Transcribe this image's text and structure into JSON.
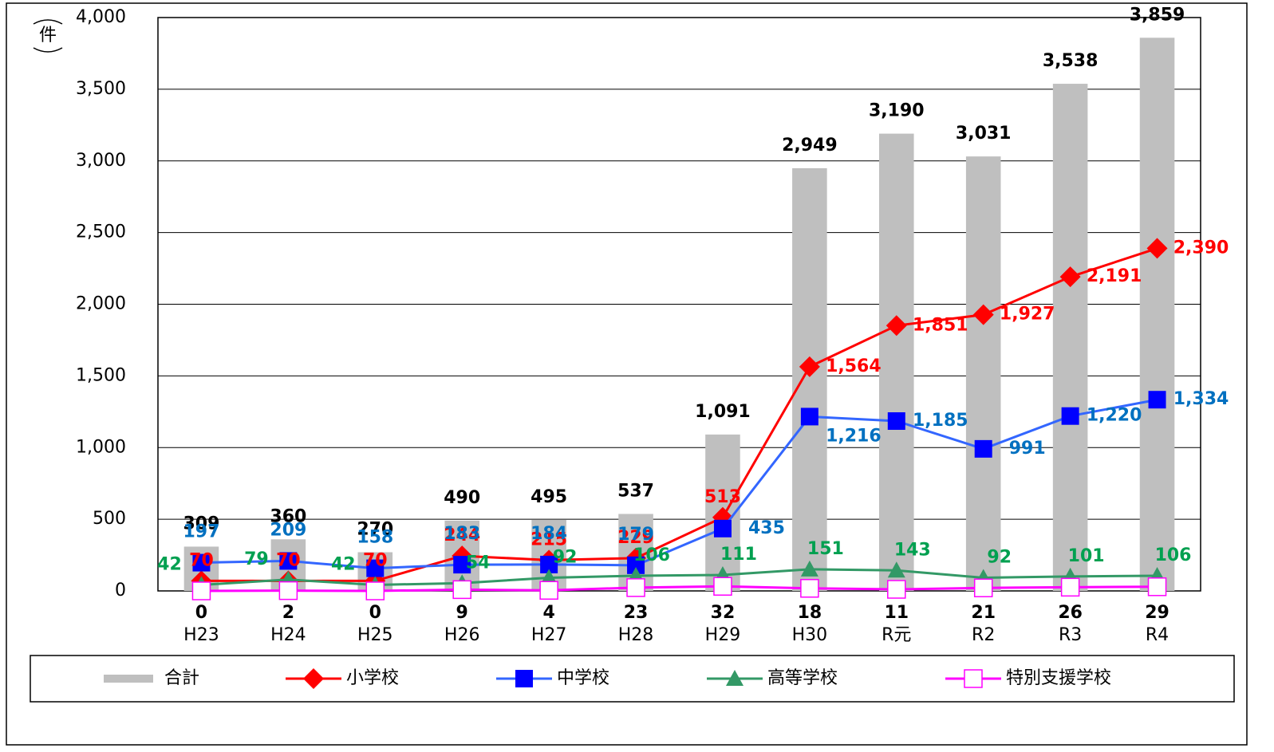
{
  "chart_data": {
    "type": "combo",
    "y_label": "件",
    "categories": [
      "H23",
      "H24",
      "H25",
      "H26",
      "H27",
      "H28",
      "H29",
      "H30",
      "R元",
      "R2",
      "R3",
      "R4"
    ],
    "series": [
      {
        "name": "合計",
        "type": "bar",
        "color": "#bfbfbf",
        "label_color": "#000000",
        "values": [
          309,
          360,
          270,
          490,
          495,
          537,
          1091,
          2949,
          3190,
          3031,
          3538,
          3859
        ],
        "value_labels": [
          "309",
          "360",
          "270",
          "490",
          "495",
          "537",
          "1,091",
          "2,949",
          "3,190",
          "3,031",
          "3,538",
          "3,859"
        ]
      },
      {
        "name": "小学校",
        "type": "line",
        "marker": "diamond",
        "color": "#ff0000",
        "label_color": "#ff0000",
        "values": [
          70,
          70,
          70,
          244,
          215,
          229,
          513,
          1564,
          1851,
          1927,
          2191,
          2390
        ],
        "value_labels": [
          "70",
          "70",
          "70",
          "244",
          "215",
          "229",
          "513",
          "1,564",
          "1,851",
          "1,927",
          "2,191",
          "2,390"
        ]
      },
      {
        "name": "中学校",
        "type": "line",
        "marker": "square",
        "color": "#3366ff",
        "label_color": "#0070c0",
        "values": [
          197,
          209,
          158,
          183,
          184,
          179,
          435,
          1216,
          1185,
          991,
          1220,
          1334
        ],
        "value_labels": [
          "197",
          "209",
          "158",
          "183",
          "184",
          "179",
          "435",
          "1,216",
          "1,185",
          "991",
          "1,220",
          "1,334"
        ]
      },
      {
        "name": "高等学校",
        "type": "line",
        "marker": "triangle",
        "color": "#339966",
        "label_color": "#00a050",
        "values": [
          42,
          79,
          42,
          54,
          92,
          106,
          111,
          151,
          143,
          92,
          101,
          106
        ]
      },
      {
        "name": "特別支援学校",
        "type": "line",
        "marker": "hollow-square",
        "color": "#ff00ff",
        "label_color": "#000000",
        "values": [
          0,
          2,
          0,
          9,
          4,
          23,
          32,
          18,
          11,
          21,
          26,
          29
        ]
      }
    ],
    "ylim": [
      0,
      4000
    ],
    "yticks": [
      0,
      500,
      {
        "value": 1000,
        "label": "1,000"
      },
      {
        "value": 1500,
        "label": "1,500"
      },
      {
        "value": 2000,
        "label": "2,000"
      },
      {
        "value": 2500,
        "label": "2,500"
      },
      {
        "value": 3000,
        "label": "3,000"
      },
      {
        "value": 3500,
        "label": "3,500"
      },
      {
        "value": 4000,
        "label": "4,000"
      }
    ],
    "grid": true
  }
}
